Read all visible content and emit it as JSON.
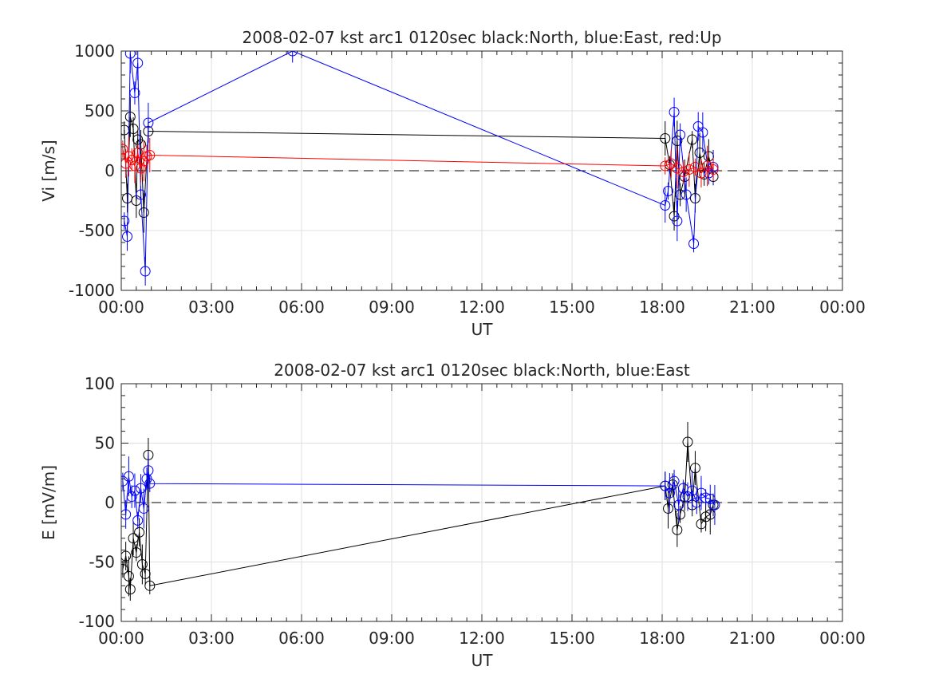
{
  "chart_data": [
    {
      "type": "line",
      "title": "2008-02-07 kst arc1 0120sec black:North, blue:East, red:Up",
      "xlabel": "UT",
      "ylabel": "Vi [m/s]",
      "xlim_hours": [
        0,
        24
      ],
      "ylim": [
        -1000,
        1000
      ],
      "x_tick_labels": [
        "00:00",
        "03:00",
        "06:00",
        "09:00",
        "12:00",
        "15:00",
        "18:00",
        "21:00",
        "00:00"
      ],
      "y_ticks": [
        -1000,
        -500,
        0,
        500,
        1000
      ],
      "y_tick_labels": [
        "-1000",
        "-500",
        "0",
        "500",
        "1000"
      ],
      "grid": true,
      "zero_line": "dashed",
      "series": [
        {
          "color": "#000000",
          "errorbars": true,
          "x_hours": [
            0.1,
            0.2,
            0.3,
            0.4,
            0.5,
            0.55,
            0.65,
            0.75,
            0.9,
            18.1,
            18.25,
            18.4,
            18.5,
            18.6,
            18.75,
            19.0,
            19.1,
            19.25,
            19.4,
            19.55,
            19.7
          ],
          "y": [
            340,
            -230,
            450,
            350,
            -250,
            260,
            220,
            -350,
            330,
            270,
            50,
            -380,
            250,
            -200,
            -50,
            260,
            -230,
            150,
            -30,
            120,
            -50
          ]
        },
        {
          "color": "#0000ff",
          "errorbars": true,
          "x_hours": [
            0.1,
            0.2,
            0.3,
            0.45,
            0.55,
            0.65,
            0.8,
            0.9,
            5.7,
            18.1,
            18.2,
            18.4,
            18.5,
            18.6,
            18.8,
            19.05,
            19.2,
            19.35,
            19.55,
            19.7
          ],
          "y": [
            -420,
            -550,
            980,
            650,
            900,
            -200,
            -840,
            400,
            1000,
            -290,
            -170,
            490,
            -420,
            300,
            -200,
            -610,
            370,
            320,
            -20,
            30
          ]
        },
        {
          "color": "#ff0000",
          "errorbars": true,
          "x_hours": [
            0.05,
            0.15,
            0.25,
            0.35,
            0.45,
            0.55,
            0.65,
            0.75,
            0.85,
            0.95,
            18.1,
            18.3,
            18.5,
            18.7,
            18.9,
            19.1,
            19.3,
            19.5,
            19.7
          ],
          "y": [
            180,
            60,
            120,
            90,
            40,
            150,
            20,
            80,
            120,
            130,
            40,
            60,
            20,
            -10,
            10,
            30,
            -20,
            40,
            10
          ]
        }
      ]
    },
    {
      "type": "line",
      "title": "2008-02-07 kst arc1 0120sec black:North, blue:East",
      "xlabel": "UT",
      "ylabel": "E [mV/m]",
      "xlim_hours": [
        0,
        24
      ],
      "ylim": [
        -100,
        100
      ],
      "x_tick_labels": [
        "00:00",
        "03:00",
        "06:00",
        "09:00",
        "12:00",
        "15:00",
        "18:00",
        "21:00",
        "00:00"
      ],
      "y_ticks": [
        -100,
        -50,
        0,
        50,
        100
      ],
      "y_tick_labels": [
        "-100",
        "-50",
        "0",
        "50",
        "100"
      ],
      "grid": true,
      "zero_line": "dashed",
      "series": [
        {
          "color": "#000000",
          "errorbars": true,
          "x_hours": [
            0.05,
            0.15,
            0.25,
            0.3,
            0.4,
            0.5,
            0.6,
            0.7,
            0.8,
            0.9,
            0.95,
            18.1,
            18.2,
            18.35,
            18.5,
            18.6,
            18.75,
            18.85,
            19.0,
            19.1,
            19.3,
            19.45,
            19.6,
            19.7
          ],
          "y": [
            -56,
            -45,
            -62,
            -73,
            -30,
            -42,
            -25,
            -52,
            -60,
            40,
            -70,
            14,
            -5,
            15,
            -23,
            -10,
            5,
            51,
            -2,
            29,
            -18,
            -12,
            -10,
            -2
          ]
        },
        {
          "color": "#0000ff",
          "errorbars": true,
          "x_hours": [
            0.05,
            0.15,
            0.25,
            0.35,
            0.45,
            0.55,
            0.65,
            0.75,
            0.85,
            0.9,
            0.95,
            18.1,
            18.25,
            18.4,
            18.55,
            18.7,
            18.85,
            19.0,
            19.15,
            19.3,
            19.45,
            19.6,
            19.75
          ],
          "y": [
            18,
            -10,
            22,
            5,
            10,
            -15,
            12,
            -5,
            20,
            27,
            16,
            14,
            8,
            18,
            -2,
            12,
            5,
            10,
            0,
            8,
            4,
            3,
            -2
          ]
        }
      ]
    }
  ]
}
